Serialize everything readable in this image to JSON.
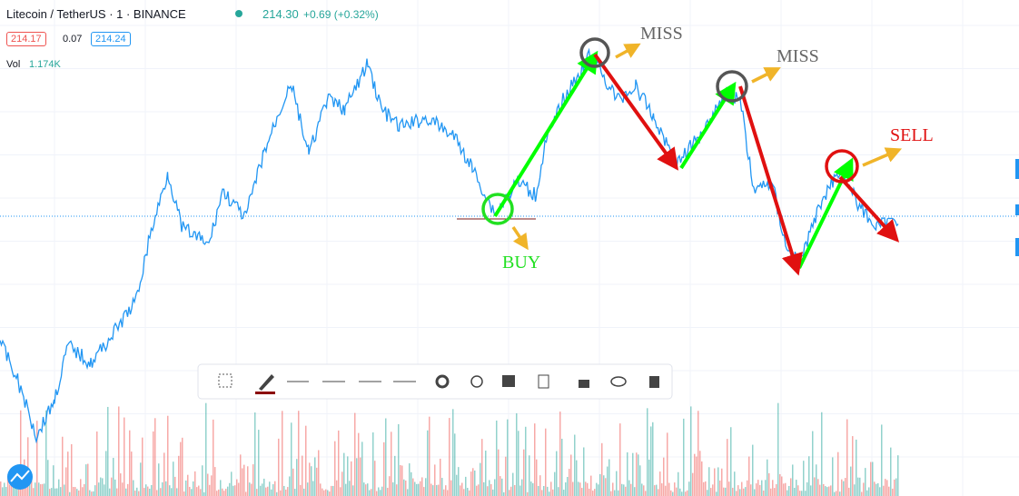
{
  "header": {
    "symbol": "Litecoin / TetherUS · 1 · BINANCE",
    "price": "214.30",
    "change": "+0.69 (+0.32%)"
  },
  "quote": {
    "bid": "214.17",
    "spread": "0.07",
    "ask": "214.24"
  },
  "volume": {
    "label": "Vol",
    "value": "1.174K"
  },
  "annotations": [
    {
      "label": "MISS"
    },
    {
      "label": "MISS"
    },
    {
      "label": "BUY"
    },
    {
      "label": "SELL"
    }
  ]
}
